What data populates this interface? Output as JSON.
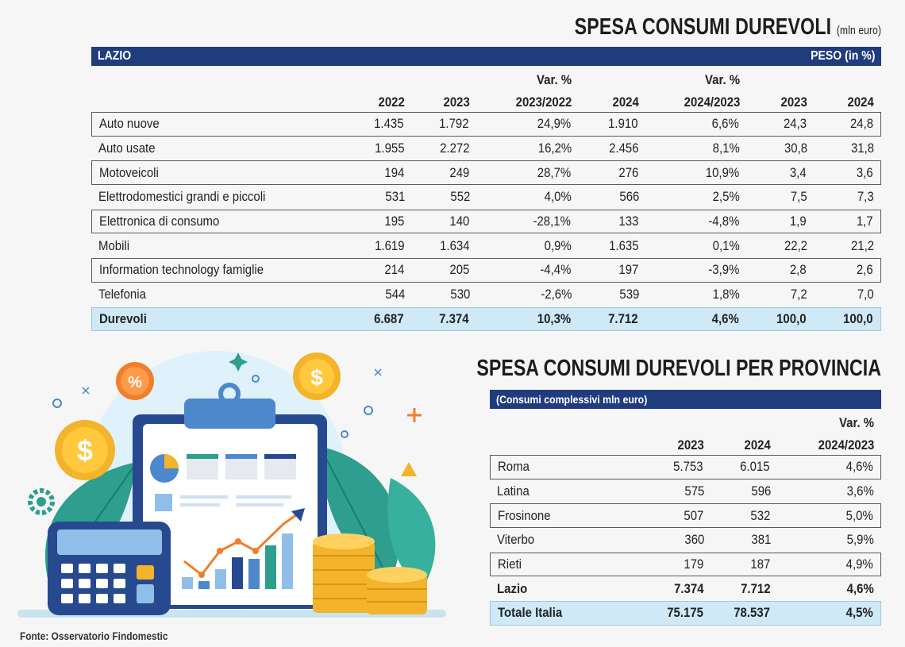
{
  "title_main": "SPESA CONSUMI DUREVOLI",
  "title_unit": "(mln euro)",
  "region_label": "LAZIO",
  "peso_label": "PESO (in %)",
  "headers": {
    "y2022": "2022",
    "y2023": "2023",
    "var1_top": "Var. %",
    "var1_bottom": "2023/2022",
    "y2024": "2024",
    "var2_top": "Var. %",
    "var2_bottom": "2024/2023",
    "peso2023": "2023",
    "peso2024": "2024"
  },
  "rows": [
    {
      "label": "Auto nuove",
      "y2022": "1.435",
      "y2023": "1.792",
      "var1": "24,9%",
      "y2024": "1.910",
      "var2": "6,6%",
      "p2023": "24,3",
      "p2024": "24,8"
    },
    {
      "label": "Auto usate",
      "y2022": "1.955",
      "y2023": "2.272",
      "var1": "16,2%",
      "y2024": "2.456",
      "var2": "8,1%",
      "p2023": "30,8",
      "p2024": "31,8"
    },
    {
      "label": "Motoveicoli",
      "y2022": "194",
      "y2023": "249",
      "var1": "28,7%",
      "y2024": "276",
      "var2": "10,9%",
      "p2023": "3,4",
      "p2024": "3,6"
    },
    {
      "label": "Elettrodomestici grandi e piccoli",
      "y2022": "531",
      "y2023": "552",
      "var1": "4,0%",
      "y2024": "566",
      "var2": "2,5%",
      "p2023": "7,5",
      "p2024": "7,3"
    },
    {
      "label": "Elettronica di consumo",
      "y2022": "195",
      "y2023": "140",
      "var1": "-28,1%",
      "y2024": "133",
      "var2": "-4,8%",
      "p2023": "1,9",
      "p2024": "1,7"
    },
    {
      "label": "Mobili",
      "y2022": "1.619",
      "y2023": "1.634",
      "var1": "0,9%",
      "y2024": "1.635",
      "var2": "0,1%",
      "p2023": "22,2",
      "p2024": "21,2"
    },
    {
      "label": "Information technology famiglie",
      "y2022": "214",
      "y2023": "205",
      "var1": "-4,4%",
      "y2024": "197",
      "var2": "-3,9%",
      "p2023": "2,8",
      "p2024": "2,6"
    },
    {
      "label": "Telefonia",
      "y2022": "544",
      "y2023": "530",
      "var1": "-2,6%",
      "y2024": "539",
      "var2": "1,8%",
      "p2023": "7,2",
      "p2024": "7,0"
    },
    {
      "label": "Durevoli",
      "y2022": "6.687",
      "y2023": "7.374",
      "var1": "10,3%",
      "y2024": "7.712",
      "var2": "4,6%",
      "p2023": "100,0",
      "p2024": "100,0"
    }
  ],
  "title_province": "SPESA CONSUMI DUREVOLI PER PROVINCIA",
  "province_banner": "(Consumi complessivi mln euro)",
  "province_headers": {
    "y2023": "2023",
    "y2024": "2024",
    "var_top": "Var. %",
    "var_bottom": "2024/2023"
  },
  "province_rows": [
    {
      "label": "Roma",
      "y2023": "5.753",
      "y2024": "6.015",
      "var": "4,6%"
    },
    {
      "label": "Latina",
      "y2023": "575",
      "y2024": "596",
      "var": "3,6%"
    },
    {
      "label": "Frosinone",
      "y2023": "507",
      "y2024": "532",
      "var": "5,0%"
    },
    {
      "label": "Viterbo",
      "y2023": "360",
      "y2024": "381",
      "var": "5,9%"
    },
    {
      "label": "Rieti",
      "y2023": "179",
      "y2024": "187",
      "var": "4,9%"
    },
    {
      "label": "Lazio",
      "y2023": "7.374",
      "y2024": "7.712",
      "var": "4,6%"
    },
    {
      "label": "Totale Italia",
      "y2023": "75.175",
      "y2024": "78.537",
      "var": "4,5%"
    }
  ],
  "source": "Fonte: Osservatorio Findomestic",
  "illustration": {
    "icons": [
      "percent-coin-icon",
      "dollar-coin-icon",
      "clipboard-icon",
      "calculator-icon",
      "coin-stack-icon",
      "gear-icon",
      "leaf-icon",
      "pie-chart-icon",
      "bar-chart-icon",
      "trend-arrow-icon"
    ],
    "percent_glyph": "%",
    "dollar_glyph": "$",
    "colors": {
      "navy": "#1f3c7c",
      "light_blue": "#cfe9f7",
      "teal": "#2e9e8e",
      "gold": "#f3b32a",
      "orange": "#f07e2b"
    }
  }
}
